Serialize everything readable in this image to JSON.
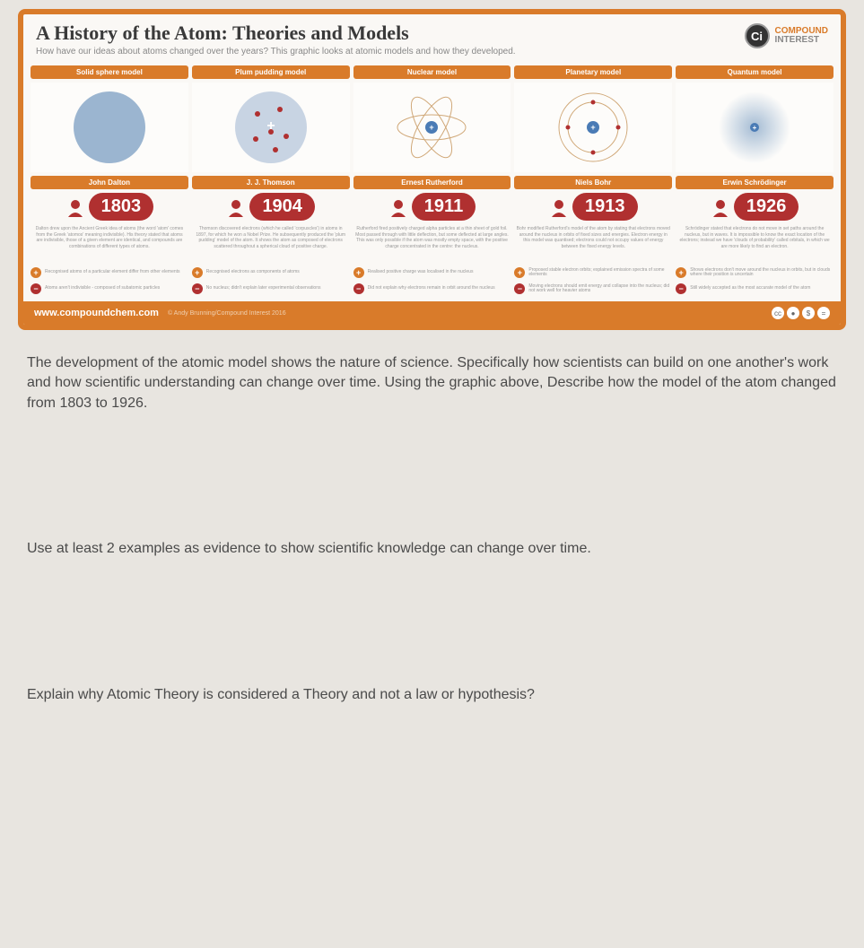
{
  "infographic": {
    "title": "A History of the Atom: Theories and Models",
    "subtitle": "How have our ideas about atoms changed over the years? This graphic looks at atomic models and how they developed.",
    "brand": {
      "logo": "Ci",
      "line1": "COMPOUND",
      "line2": "INTEREST"
    },
    "footer_url": "www.compoundchem.com",
    "footer_credit": "© Andy Brunning/Compound Interest 2016",
    "columns": [
      {
        "model": "Solid sphere model",
        "scientist": "John Dalton",
        "year": "1803",
        "desc": "Dalton drew upon the Ancient Greek idea of atoms (the word 'atom' comes from the Greek 'atomos' meaning indivisible). His theory stated that atoms are indivisible, those of a given element are identical, and compounds are combinations of different types of atoms.",
        "pro": "Recognised atoms of a particular element differ from other elements",
        "con": "Atoms aren't indivisible - composed of subatomic particles",
        "diagram": {
          "type": "solid",
          "fill": "#9bb5d0"
        }
      },
      {
        "model": "Plum pudding model",
        "scientist": "J. J. Thomson",
        "year": "1904",
        "desc": "Thomson discovered electrons (which he called 'corpuscles') in atoms in 1897, for which he won a Nobel Prize. He subsequently produced the 'plum pudding' model of the atom. It shows the atom as composed of electrons scattered throughout a spherical cloud of positive charge.",
        "pro": "Recognised electrons as components of atoms",
        "con": "No nucleus; didn't explain later experimental observations",
        "diagram": {
          "type": "pudding",
          "fill": "#c8d4e3",
          "electron": "#b03030"
        }
      },
      {
        "model": "Nuclear model",
        "scientist": "Ernest Rutherford",
        "year": "1911",
        "desc": "Rutherford fired positively charged alpha particles at a thin sheet of gold foil. Most passed through with little deflection, but some deflected at large angles. This was only possible if the atom was mostly empty space, with the positive charge concentrated in the centre: the nucleus.",
        "pro": "Realised positive charge was localised in the nucleus",
        "con": "Did not explain why electrons remain in orbit around the nucleus",
        "diagram": {
          "type": "nuclear",
          "orbit": "#d0a878",
          "nucleus": "#4a7bb5"
        }
      },
      {
        "model": "Planetary model",
        "scientist": "Niels Bohr",
        "year": "1913",
        "desc": "Bohr modified Rutherford's model of the atom by stating that electrons moved around the nucleus in orbits of fixed sizes and energies. Electron energy in this model was quantised; electrons could not occupy values of energy between the fixed energy levels.",
        "pro": "Proposed stable electron orbits; explained emission spectra of some elements",
        "con": "Moving electrons should emit energy and collapse into the nucleus; did not work well for heavier atoms",
        "diagram": {
          "type": "planetary",
          "orbit": "#d0a878",
          "nucleus": "#4a7bb5",
          "electron": "#b03030"
        }
      },
      {
        "model": "Quantum model",
        "scientist": "Erwin Schrödinger",
        "year": "1926",
        "desc": "Schrödinger stated that electrons do not move in set paths around the nucleus, but in waves. It is impossible to know the exact location of the electrons; instead we have 'clouds of probability' called orbitals, in which we are more likely to find an electron.",
        "pro": "Shows electrons don't move around the nucleus in orbits, but in clouds where their position is uncertain",
        "con": "Still widely accepted as the most accurate model of the atom",
        "diagram": {
          "type": "quantum",
          "cloud": "#9bb5d0",
          "nucleus": "#4a7bb5"
        }
      }
    ]
  },
  "questions": {
    "q1": "The development of the atomic model shows the nature of science. Specifically how scientists can build on one another's work and how scientific understanding can change over time. Using the graphic above, Describe how the model of the atom changed from 1803 to 1926.",
    "q2": "Use at least 2 examples as evidence to show scientific knowledge can change over time.",
    "q3": "Explain why Atomic Theory is considered a Theory and not a law or hypothesis?"
  }
}
